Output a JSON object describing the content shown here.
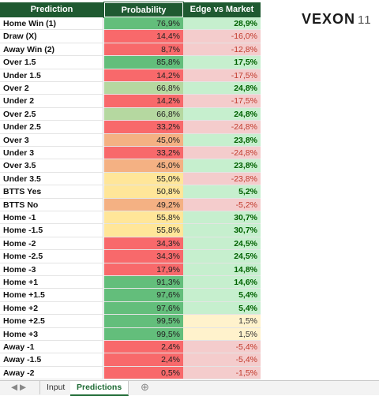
{
  "header": {
    "columns": [
      "Prediction",
      "Probability",
      "Edge vs Market"
    ],
    "logo": "VEXON",
    "logo_suffix": "11"
  },
  "rows": [
    [
      "Home Win (1)",
      "76,9%",
      "28,9%",
      "#63be7b",
      "#c6efce"
    ],
    [
      "Draw (X)",
      "14,4%",
      "-16,0%",
      "#f8696b",
      "#f4cccc"
    ],
    [
      "Away Win (2)",
      "8,7%",
      "-12,8%",
      "#f8696b",
      "#f4cccc"
    ],
    [
      "Over 1.5",
      "85,8%",
      "17,5%",
      "#63be7b",
      "#c6efce"
    ],
    [
      "Under 1.5",
      "14,2%",
      "-17,5%",
      "#f8696b",
      "#f4cccc"
    ],
    [
      "Over 2",
      "66,8%",
      "24,8%",
      "#b5d8a0",
      "#c6efce"
    ],
    [
      "Under 2",
      "14,2%",
      "-17,5%",
      "#f8696b",
      "#f4cccc"
    ],
    [
      "Over 2.5",
      "66,8%",
      "24,8%",
      "#b5d8a0",
      "#c6efce"
    ],
    [
      "Under 2.5",
      "33,2%",
      "-24,8%",
      "#f8696b",
      "#f4cccc"
    ],
    [
      "Over 3",
      "45,0%",
      "23,8%",
      "#f4b183",
      "#c6efce"
    ],
    [
      "Under 3",
      "33,2%",
      "-24,8%",
      "#f8696b",
      "#f4cccc"
    ],
    [
      "Over 3.5",
      "45,0%",
      "23,8%",
      "#f4b183",
      "#c6efce"
    ],
    [
      "Under 3.5",
      "55,0%",
      "-23,8%",
      "#ffe699",
      "#f4cccc"
    ],
    [
      "BTTS Yes",
      "50,8%",
      "5,2%",
      "#ffe699",
      "#c6efce"
    ],
    [
      "BTTS No",
      "49,2%",
      "-5,2%",
      "#f4b183",
      "#f4cccc"
    ],
    [
      "Home -1",
      "55,8%",
      "30,7%",
      "#ffe699",
      "#c6efce"
    ],
    [
      "Home -1.5",
      "55,8%",
      "30,7%",
      "#ffe699",
      "#c6efce"
    ],
    [
      "Home -2",
      "34,3%",
      "24,5%",
      "#f8696b",
      "#c6efce"
    ],
    [
      "Home -2.5",
      "34,3%",
      "24,5%",
      "#f8696b",
      "#c6efce"
    ],
    [
      "Home -3",
      "17,9%",
      "14,8%",
      "#f8696b",
      "#c6efce"
    ],
    [
      "Home +1",
      "91,3%",
      "14,6%",
      "#63be7b",
      "#c6efce"
    ],
    [
      "Home +1.5",
      "97,6%",
      "5,4%",
      "#63be7b",
      "#c6efce"
    ],
    [
      "Home +2",
      "97,6%",
      "5,4%",
      "#63be7b",
      "#c6efce"
    ],
    [
      "Home +2.5",
      "99,5%",
      "1,5%",
      "#63be7b",
      "#fff2cc"
    ],
    [
      "Home +3",
      "99,5%",
      "1,5%",
      "#63be7b",
      "#fff2cc"
    ],
    [
      "Away -1",
      "2,4%",
      "-5,4%",
      "#f8696b",
      "#f4cccc"
    ],
    [
      "Away -1.5",
      "2,4%",
      "-5,4%",
      "#f8696b",
      "#f4cccc"
    ],
    [
      "Away -2",
      "0,5%",
      "-1,5%",
      "#f8696b",
      "#f4cccc"
    ]
  ],
  "tabs": [
    "Input",
    "Predictions"
  ]
}
